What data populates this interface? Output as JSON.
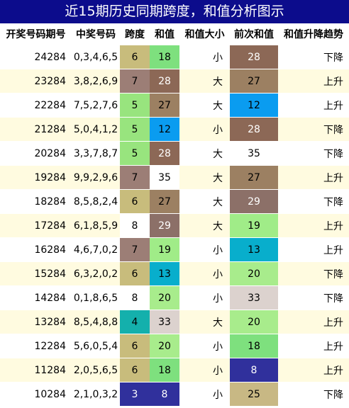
{
  "title": "近15期历史同期跨度，和值分析图示",
  "headers": [
    "开奖号码期号",
    "中奖号码",
    "跨度",
    "和值",
    "和值大小",
    "前次和值",
    "和值升降趋势"
  ],
  "rows": [
    {
      "period": "24284",
      "numbers": "0,3,4,6,5",
      "span": "6",
      "span_color": "#c8bc7c",
      "sum": "18",
      "sum_color": "#7ee07e",
      "size": "小",
      "prev": "28",
      "prev_color": "#8c6856",
      "trend": "下降"
    },
    {
      "period": "23284",
      "numbers": "3,8,2,6,9",
      "span": "7",
      "span_color": "#9c7e76",
      "sum": "28",
      "sum_color": "#8c6856",
      "size": "大",
      "prev": "27",
      "prev_color": "#9c8062",
      "trend": "上升"
    },
    {
      "period": "22284",
      "numbers": "7,5,2,7,6",
      "span": "5",
      "span_color": "#98e47e",
      "sum": "27",
      "sum_color": "#9c8062",
      "size": "大",
      "prev": "12",
      "prev_color": "#0a9cf0",
      "trend": "上升"
    },
    {
      "period": "21284",
      "numbers": "5,0,4,1,2",
      "span": "5",
      "span_color": "#98e47e",
      "sum": "12",
      "sum_color": "#0a9cf0",
      "size": "小",
      "prev": "28",
      "prev_color": "#8c6856",
      "trend": "下降"
    },
    {
      "period": "20284",
      "numbers": "3,3,7,8,7",
      "span": "5",
      "span_color": "#98e47e",
      "sum": "28",
      "sum_color": "#8c6856",
      "size": "大",
      "prev": "35",
      "prev_color": "#ffffff",
      "trend": "下降"
    },
    {
      "period": "19284",
      "numbers": "9,9,2,9,6",
      "span": "7",
      "span_color": "#9c7e76",
      "sum": "35",
      "sum_color": "#ffffff",
      "size": "大",
      "prev": "27",
      "prev_color": "#9c8062",
      "trend": "上升"
    },
    {
      "period": "18284",
      "numbers": "8,5,8,2,4",
      "span": "6",
      "span_color": "#c8bc7c",
      "sum": "27",
      "sum_color": "#9c8062",
      "size": "大",
      "prev": "29",
      "prev_color": "#8c7068",
      "trend": "下降"
    },
    {
      "period": "17284",
      "numbers": "6,1,8,5,9",
      "span": "8",
      "span_color": "#ffffff",
      "sum": "29",
      "sum_color": "#8c7068",
      "size": "大",
      "prev": "19",
      "prev_color": "#a0ec88",
      "trend": "上升"
    },
    {
      "period": "16284",
      "numbers": "4,6,7,0,2",
      "span": "7",
      "span_color": "#9c7e76",
      "sum": "19",
      "sum_color": "#a0ec88",
      "size": "小",
      "prev": "13",
      "prev_color": "#08aecc",
      "trend": "上升"
    },
    {
      "period": "15284",
      "numbers": "6,3,2,0,2",
      "span": "6",
      "span_color": "#c8bc7c",
      "sum": "13",
      "sum_color": "#08aecc",
      "size": "小",
      "prev": "20",
      "prev_color": "#a8ec8c",
      "trend": "下降"
    },
    {
      "period": "14284",
      "numbers": "0,1,8,6,5",
      "span": "8",
      "span_color": "#ffffff",
      "sum": "20",
      "sum_color": "#a8ec8c",
      "size": "小",
      "prev": "33",
      "prev_color": "#dcd2ce",
      "trend": "下降"
    },
    {
      "period": "13284",
      "numbers": "8,5,4,8,8",
      "span": "4",
      "span_color": "#14b0ac",
      "sum": "33",
      "sum_color": "#dcd2ce",
      "size": "大",
      "prev": "20",
      "prev_color": "#a8ec8c",
      "trend": "上升"
    },
    {
      "period": "12284",
      "numbers": "5,6,0,5,4",
      "span": "6",
      "span_color": "#c8bc7c",
      "sum": "20",
      "sum_color": "#a8ec8c",
      "size": "小",
      "prev": "18",
      "prev_color": "#7ee07e",
      "trend": "上升"
    },
    {
      "period": "11284",
      "numbers": "2,0,5,6,5",
      "span": "6",
      "span_color": "#c8bc7c",
      "sum": "18",
      "sum_color": "#7ee07e",
      "size": "小",
      "prev": "8",
      "prev_color": "#30309c",
      "trend": "上升"
    },
    {
      "period": "10284",
      "numbers": "2,1,0,3,2",
      "span": "3",
      "span_color": "#30309c",
      "sum": "8",
      "sum_color": "#30309c",
      "size": "小",
      "prev": "25",
      "prev_color": "#c8b884",
      "trend": "下降"
    }
  ]
}
